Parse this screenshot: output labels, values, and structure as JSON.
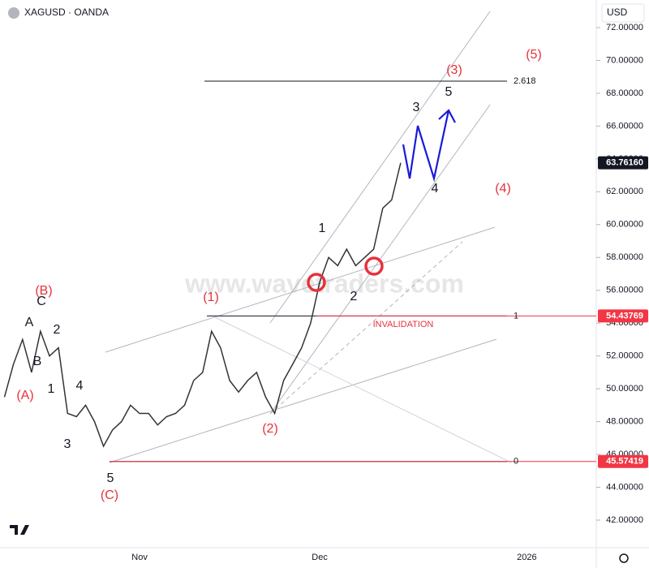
{
  "chart_data": {
    "type": "line",
    "title": "XAGUSD · OANDA",
    "currency": "USD",
    "watermark": "www.wavetraders.com",
    "categories": [
      null,
      null,
      null,
      null,
      null,
      null,
      null,
      null,
      null,
      null,
      null,
      null,
      null,
      null,
      null,
      "Nov",
      null,
      null,
      null,
      null,
      null,
      null,
      null,
      null,
      null,
      null,
      null,
      null,
      null,
      null,
      null,
      null,
      null,
      null,
      null,
      "Dec",
      null,
      null,
      null,
      null,
      null,
      null,
      null,
      null,
      null,
      null,
      null,
      null,
      null,
      null,
      null,
      null,
      null,
      null,
      null,
      null,
      null,
      null,
      "2026",
      null,
      null,
      null,
      null,
      null,
      null,
      null
    ],
    "series": [
      {
        "name": "XAGUSD",
        "color": "#333333",
        "values": [
          49.5,
          51.5,
          53,
          51,
          53.5,
          52,
          52.5,
          48.5,
          48.3,
          49,
          48,
          46.5,
          47.5,
          48,
          49,
          48.5,
          48.5,
          47.8,
          48.3,
          48.5,
          49,
          50.5,
          51,
          53.5,
          52.5,
          50.5,
          49.8,
          50.5,
          51,
          49.5,
          48.5,
          50.5,
          51.5,
          52.5,
          54,
          56.5,
          58,
          57.5,
          58.5,
          57.5,
          58,
          58.5,
          61,
          61.5,
          63.76,
          null,
          null,
          null,
          null,
          null,
          null,
          null,
          null,
          null,
          null,
          null,
          null,
          null,
          null,
          null,
          null,
          null,
          null,
          null,
          null,
          null
        ]
      }
    ],
    "ylim": [
      40.32,
      73.68
    ],
    "yticks": [
      {
        "value": 42,
        "label": "42.00000"
      },
      {
        "value": 44,
        "label": "44.00000"
      },
      {
        "value": 46,
        "label": "46.00000"
      },
      {
        "value": 48,
        "label": "48.00000"
      },
      {
        "value": 50,
        "label": "50.00000"
      },
      {
        "value": 52,
        "label": "52.00000"
      },
      {
        "value": 54,
        "label": "54.00000"
      },
      {
        "value": 56,
        "label": "56.00000"
      },
      {
        "value": 58,
        "label": "58.00000"
      },
      {
        "value": 60,
        "label": "60.00000"
      },
      {
        "value": 62,
        "label": "62.00000"
      },
      {
        "value": 64,
        "label": "64.00000"
      },
      {
        "value": 66,
        "label": "66.00000"
      },
      {
        "value": 68,
        "label": "68.00000"
      },
      {
        "value": 70,
        "label": "70.00000"
      },
      {
        "value": 72,
        "label": "72.00000"
      }
    ],
    "price_tags": [
      {
        "value": 63.7616,
        "label": "63.76160",
        "color": "#131722"
      },
      {
        "value": 54.43769,
        "label": "54.43769",
        "color": "#f23645"
      },
      {
        "value": 45.57419,
        "label": "45.57419",
        "color": "#f23645"
      }
    ],
    "fib_levels": [
      {
        "ratio": 2.618,
        "price": 68.74
      },
      {
        "ratio": 1,
        "price": 54.43769
      },
      {
        "ratio": 0,
        "price": 45.57419
      }
    ],
    "invalidation": "INVALIDATION",
    "wave_labels": [
      "C",
      "A",
      "B",
      "2",
      "1",
      "4",
      "3",
      "5",
      "1",
      "2",
      "3",
      "5",
      "4",
      "(B)",
      "(A)",
      "(C)",
      "(1)",
      "(2)",
      "(3)",
      "(4)",
      "(5)"
    ]
  }
}
